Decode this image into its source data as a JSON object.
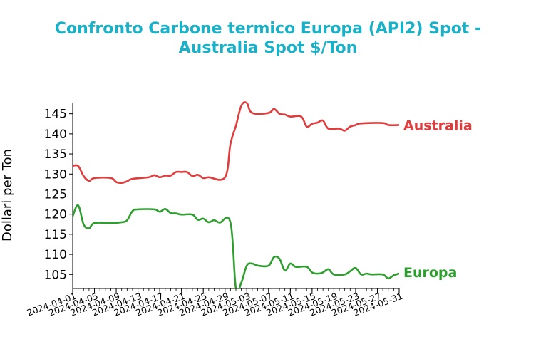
{
  "chart_data": {
    "type": "line",
    "title_line1": "Confronto Carbone termico Europa (API2) Spot -",
    "title_line2": "Australia Spot $/Ton",
    "ylabel": "Dollari per Ton",
    "xlabel": "",
    "ylim": [
      101.5,
      147.6
    ],
    "yticks": [
      105,
      110,
      115,
      120,
      125,
      130,
      135,
      140,
      145
    ],
    "x_start": "2024-04-01",
    "x_end": "2024-05-31",
    "x_ticks": [
      "2024-04-01",
      "2024-04-05",
      "2024-04-09",
      "2024-04-13",
      "2024-04-17",
      "2024-04-21",
      "2024-04-25",
      "2024-04-29",
      "2024-05-03",
      "2024-05-07",
      "2024-05-11",
      "2024-05-15",
      "2024-05-19",
      "2024-05-23",
      "2024-05-27",
      "2024-05-31"
    ],
    "series": [
      {
        "name": "Australia",
        "color": "#e03c3c",
        "points": [
          [
            "2024-04-01",
            132.0
          ],
          [
            "2024-04-02",
            132.0
          ],
          [
            "2024-04-03",
            129.5
          ],
          [
            "2024-04-04",
            128.3
          ],
          [
            "2024-04-05",
            129.0
          ],
          [
            "2024-04-08",
            129.0
          ],
          [
            "2024-04-09",
            128.0
          ],
          [
            "2024-04-10",
            127.8
          ],
          [
            "2024-04-11",
            128.2
          ],
          [
            "2024-04-12",
            128.8
          ],
          [
            "2024-04-15",
            129.2
          ],
          [
            "2024-04-16",
            129.7
          ],
          [
            "2024-04-17",
            129.2
          ],
          [
            "2024-04-18",
            129.6
          ],
          [
            "2024-04-19",
            129.6
          ],
          [
            "2024-04-20",
            130.5
          ],
          [
            "2024-04-21",
            130.5
          ],
          [
            "2024-04-22",
            130.5
          ],
          [
            "2024-04-23",
            129.5
          ],
          [
            "2024-04-24",
            129.8
          ],
          [
            "2024-04-25",
            129.0
          ],
          [
            "2024-04-26",
            129.2
          ],
          [
            "2024-04-29",
            129.2
          ],
          [
            "2024-04-30",
            137.5
          ],
          [
            "2024-05-01",
            142.0
          ],
          [
            "2024-05-02",
            147.0
          ],
          [
            "2024-05-03",
            147.7
          ],
          [
            "2024-05-04",
            145.2
          ],
          [
            "2024-05-07",
            145.2
          ],
          [
            "2024-05-08",
            146.2
          ],
          [
            "2024-05-09",
            145.0
          ],
          [
            "2024-05-10",
            144.8
          ],
          [
            "2024-05-11",
            144.3
          ],
          [
            "2024-05-13",
            144.3
          ],
          [
            "2024-05-14",
            141.8
          ],
          [
            "2024-05-15",
            142.5
          ],
          [
            "2024-05-16",
            142.8
          ],
          [
            "2024-05-17",
            143.3
          ],
          [
            "2024-05-18",
            141.3
          ],
          [
            "2024-05-20",
            141.3
          ],
          [
            "2024-05-21",
            140.8
          ],
          [
            "2024-05-22",
            141.8
          ],
          [
            "2024-05-23",
            142.2
          ],
          [
            "2024-05-24",
            142.6
          ],
          [
            "2024-05-28",
            142.7
          ],
          [
            "2024-05-29",
            142.2
          ],
          [
            "2024-05-31",
            142.2
          ]
        ]
      },
      {
        "name": "Europa",
        "color": "#2e9e2e",
        "points": [
          [
            "2024-04-01",
            119.5
          ],
          [
            "2024-04-02",
            122.2
          ],
          [
            "2024-04-03",
            117.5
          ],
          [
            "2024-04-04",
            116.5
          ],
          [
            "2024-04-05",
            117.8
          ],
          [
            "2024-04-08",
            117.8
          ],
          [
            "2024-04-10",
            118.0
          ],
          [
            "2024-04-11",
            118.5
          ],
          [
            "2024-04-12",
            120.8
          ],
          [
            "2024-04-13",
            121.2
          ],
          [
            "2024-04-16",
            121.2
          ],
          [
            "2024-04-17",
            120.6
          ],
          [
            "2024-04-18",
            121.3
          ],
          [
            "2024-04-19",
            120.3
          ],
          [
            "2024-04-20",
            120.2
          ],
          [
            "2024-04-21",
            119.9
          ],
          [
            "2024-04-23",
            119.9
          ],
          [
            "2024-04-24",
            118.6
          ],
          [
            "2024-04-25",
            118.9
          ],
          [
            "2024-04-26",
            118.0
          ],
          [
            "2024-04-27",
            118.5
          ],
          [
            "2024-04-28",
            117.9
          ],
          [
            "2024-04-30",
            117.9
          ],
          [
            "2024-05-01",
            101.5
          ],
          [
            "2024-05-02",
            103.0
          ],
          [
            "2024-05-03",
            107.2
          ],
          [
            "2024-05-04",
            107.7
          ],
          [
            "2024-05-05",
            107.2
          ],
          [
            "2024-05-07",
            107.2
          ],
          [
            "2024-05-08",
            109.3
          ],
          [
            "2024-05-09",
            108.9
          ],
          [
            "2024-05-10",
            106.0
          ],
          [
            "2024-05-11",
            107.7
          ],
          [
            "2024-05-12",
            106.9
          ],
          [
            "2024-05-14",
            106.9
          ],
          [
            "2024-05-15",
            105.5
          ],
          [
            "2024-05-16",
            105.2
          ],
          [
            "2024-05-17",
            105.5
          ],
          [
            "2024-05-18",
            106.3
          ],
          [
            "2024-05-19",
            105.0
          ],
          [
            "2024-05-21",
            105.0
          ],
          [
            "2024-05-22",
            105.8
          ],
          [
            "2024-05-23",
            106.6
          ],
          [
            "2024-05-24",
            105.0
          ],
          [
            "2024-05-25",
            105.2
          ],
          [
            "2024-05-26",
            105.0
          ],
          [
            "2024-05-28",
            105.0
          ],
          [
            "2024-05-29",
            104.0
          ],
          [
            "2024-05-30",
            104.8
          ],
          [
            "2024-05-31",
            105.2
          ],
          [
            "2024-06-01",
            105.6
          ],
          [
            "2024-06-02",
            105.6
          ]
        ]
      }
    ]
  }
}
